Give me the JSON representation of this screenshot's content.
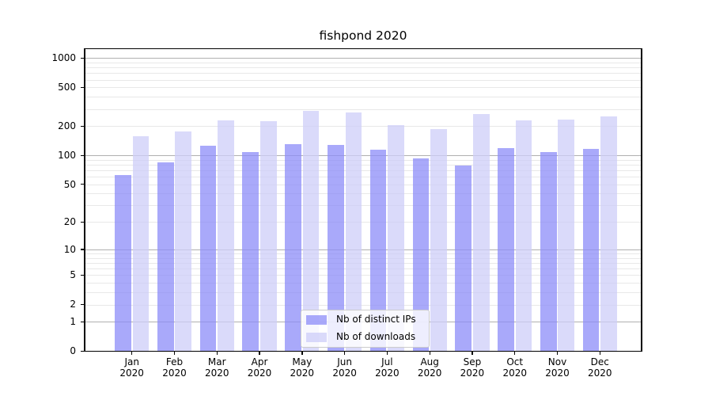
{
  "title": "fishpond 2020",
  "legend": {
    "items": [
      {
        "label": "Nb of distinct IPs",
        "color": "rgba(140,140,248,0.75)"
      },
      {
        "label": "Nb of downloads",
        "color": "rgba(205,205,248,0.75)"
      }
    ]
  },
  "chart_data": {
    "type": "bar",
    "title": "fishpond 2020",
    "categories": [
      "Jan 2020",
      "Feb 2020",
      "Mar 2020",
      "Apr 2020",
      "May 2020",
      "Jun 2020",
      "Jul 2020",
      "Aug 2020",
      "Sep 2020",
      "Oct 2020",
      "Nov 2020",
      "Dec 2020"
    ],
    "series": [
      {
        "name": "Nb of distinct IPs",
        "color": "rgba(140,140,248,0.75)",
        "values": [
          63,
          85,
          125,
          108,
          131,
          127,
          114,
          93,
          78,
          118,
          109,
          117
        ]
      },
      {
        "name": "Nb of downloads",
        "color": "rgba(205,205,248,0.75)",
        "values": [
          158,
          176,
          230,
          225,
          285,
          275,
          205,
          188,
          265,
          230,
          235,
          252
        ]
      }
    ],
    "xlabel": "",
    "ylabel": "",
    "yscale": "log1p",
    "ylim": [
      0,
      1250
    ],
    "yticks": [
      0,
      1,
      2,
      5,
      10,
      20,
      50,
      100,
      200,
      500,
      1000
    ],
    "minor_gridlines": [
      2,
      3,
      4,
      5,
      6,
      7,
      8,
      9,
      20,
      30,
      40,
      50,
      60,
      70,
      80,
      90,
      200,
      300,
      400,
      500,
      600,
      700,
      800,
      900
    ],
    "major_gridlines": [
      1,
      10,
      100,
      1000
    ],
    "grid": "horizontal",
    "legend_position": "lower center",
    "colors": {
      "major_grid": "#b0b0b0",
      "minor_grid": "#e8e8e8",
      "spine": "#000000",
      "text": "#000000",
      "background": "#ffffff"
    }
  }
}
